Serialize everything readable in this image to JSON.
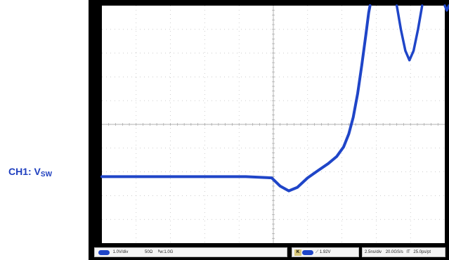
{
  "channel_label": {
    "prefix": "CH1: V",
    "subscript": "SW"
  },
  "status_bar": {
    "vdiv": "1.0V/div",
    "impedance": "50Ω",
    "bw": "ᴮw:1.0G",
    "trigger_tag": "K",
    "trigger_level": "1.92V",
    "timebase": "2.5ns/div",
    "sample_rate": "20.0GS/s",
    "mode": "IT",
    "resolution": "25.0ps/pt"
  },
  "colors": {
    "trace": "#1f45c8",
    "grid_bg": "#ffffff",
    "frame": "#000000",
    "graticule": "#b0b0b0",
    "label": "#1f3fbf"
  },
  "chart_data": {
    "type": "line",
    "title": "",
    "xlabel": "",
    "ylabel": "",
    "x_divisions": 10,
    "y_divisions": 10,
    "xlim": [
      0,
      10
    ],
    "ylim": [
      0,
      10
    ],
    "grid": true,
    "series": [
      {
        "points": [
          [
            0.0,
            2.8
          ],
          [
            0.6,
            2.8
          ],
          [
            1.2,
            2.8
          ],
          [
            1.8,
            2.8
          ],
          [
            2.4,
            2.8
          ],
          [
            3.0,
            2.8
          ],
          [
            3.6,
            2.8
          ],
          [
            4.2,
            2.8
          ],
          [
            4.95,
            2.75
          ],
          [
            5.2,
            2.4
          ],
          [
            5.45,
            2.2
          ],
          [
            5.7,
            2.35
          ],
          [
            6.0,
            2.75
          ],
          [
            6.3,
            3.05
          ],
          [
            6.6,
            3.35
          ],
          [
            6.85,
            3.65
          ],
          [
            7.05,
            4.05
          ],
          [
            7.2,
            4.6
          ],
          [
            7.33,
            5.3
          ],
          [
            7.46,
            6.3
          ],
          [
            7.58,
            7.5
          ],
          [
            7.7,
            8.8
          ],
          [
            7.78,
            9.7
          ],
          [
            7.82,
            10.0
          ]
        ]
      },
      {
        "points": [
          [
            8.6,
            10.0
          ],
          [
            8.72,
            9.0
          ],
          [
            8.85,
            8.1
          ],
          [
            8.97,
            7.7
          ],
          [
            9.09,
            8.1
          ],
          [
            9.22,
            9.0
          ],
          [
            9.34,
            10.0
          ]
        ]
      },
      {
        "points": [
          [
            10.0,
            10.0
          ],
          [
            10.06,
            9.8
          ],
          [
            10.12,
            10.0
          ]
        ]
      }
    ]
  }
}
